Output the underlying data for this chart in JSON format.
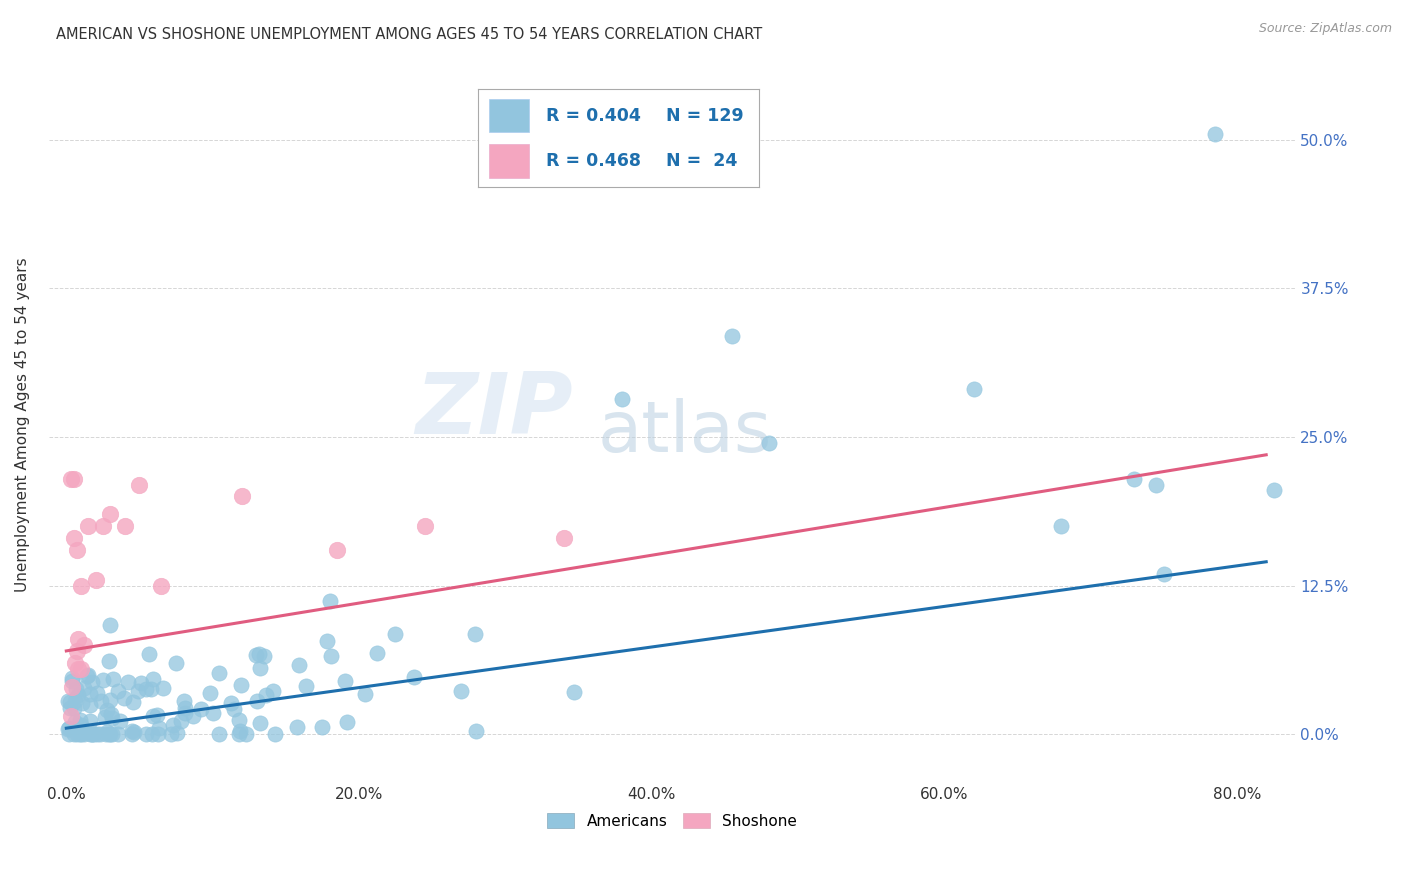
{
  "title": "AMERICAN VS SHOSHONE UNEMPLOYMENT AMONG AGES 45 TO 54 YEARS CORRELATION CHART",
  "source": "Source: ZipAtlas.com",
  "xlabel_ticks": [
    "0.0%",
    "",
    "20.0%",
    "",
    "40.0%",
    "",
    "60.0%",
    "",
    "80.0%"
  ],
  "xlabel_tick_vals": [
    0.0,
    0.1,
    0.2,
    0.3,
    0.4,
    0.5,
    0.6,
    0.7,
    0.8
  ],
  "ylabel": "Unemployment Among Ages 45 to 54 years",
  "ylabel_ticks_right": [
    "0.0%",
    "12.5%",
    "25.0%",
    "37.5%",
    "50.0%"
  ],
  "ylabel_tick_vals": [
    0.0,
    0.125,
    0.25,
    0.375,
    0.5
  ],
  "americans_R": "0.404",
  "americans_N": "129",
  "shoshone_R": "0.468",
  "shoshone_N": "24",
  "americans_color": "#92C5DE",
  "shoshone_color": "#F4A6C0",
  "americans_line_color": "#1E6FAD",
  "shoshone_line_color": "#E05C80",
  "legend_label_americans": "Americans",
  "legend_label_shoshone": "Shoshone",
  "watermark_zip": "ZIP",
  "watermark_atlas": "atlas",
  "background_color": "#ffffff",
  "xlim": [
    -0.012,
    0.84
  ],
  "ylim": [
    -0.04,
    0.56
  ],
  "am_line_x0": 0.0,
  "am_line_x1": 0.82,
  "am_line_y0": 0.005,
  "am_line_y1": 0.145,
  "sh_line_x0": 0.0,
  "sh_line_x1": 0.82,
  "sh_line_y0": 0.07,
  "sh_line_y1": 0.235
}
